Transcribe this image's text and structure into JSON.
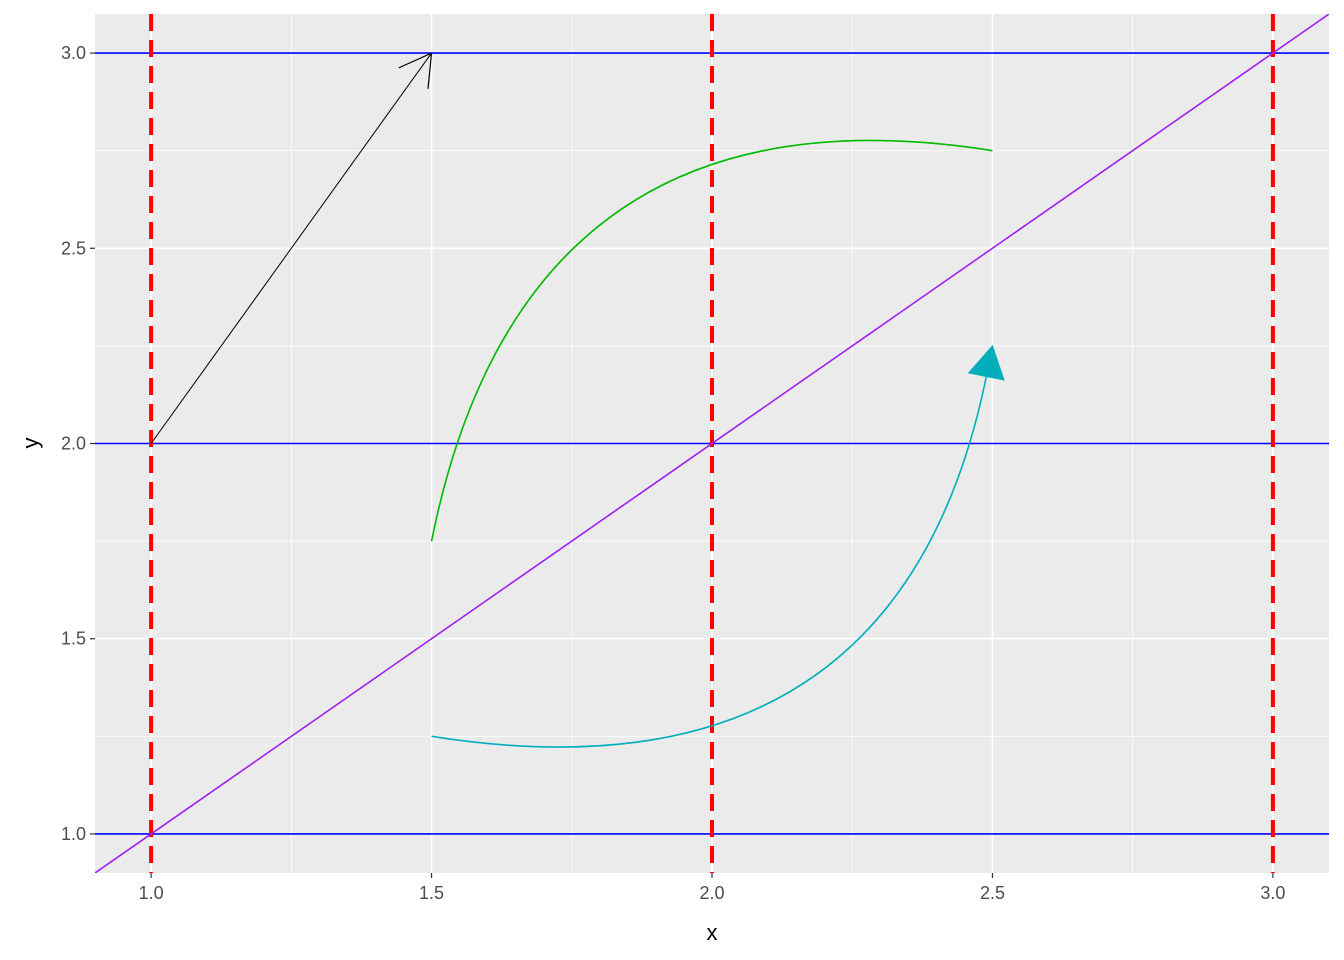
{
  "chart_data": {
    "type": "line",
    "xlabel": "x",
    "ylabel": "y",
    "xlim": [
      0.9,
      3.1
    ],
    "ylim": [
      0.9,
      3.1
    ],
    "x_ticks": [
      1.0,
      1.5,
      2.0,
      2.5,
      3.0
    ],
    "x_tick_labels": [
      "1.0",
      "1.5",
      "2.0",
      "2.5",
      "3.0"
    ],
    "y_ticks": [
      1.0,
      1.5,
      2.0,
      2.5,
      3.0
    ],
    "y_tick_labels": [
      "1.0",
      "1.5",
      "2.0",
      "2.5",
      "3.0"
    ],
    "grid": true,
    "background": "#EBEBEB",
    "hlines": {
      "values": [
        1,
        2,
        3
      ],
      "color": "#0000FF"
    },
    "vlines": {
      "values": [
        1,
        2,
        3
      ],
      "color": "#FF0000",
      "linetype": "dashed"
    },
    "abline": {
      "slope": 1,
      "intercept": 0,
      "color": "#A020F0"
    },
    "segment": {
      "x": 1,
      "y": 2,
      "xend": 1.5,
      "yend": 3,
      "color": "#000000",
      "arrow": "open"
    },
    "curves": [
      {
        "x": 1.5,
        "y": 1.75,
        "xend": 2.5,
        "yend": 2.75,
        "curvature": -0.5,
        "color": "#00BA00",
        "arrow": "none"
      },
      {
        "x": 1.5,
        "y": 1.25,
        "xend": 2.5,
        "yend": 2.25,
        "curvature": 0.5,
        "color": "#00AFBB",
        "arrow": "closed"
      }
    ]
  }
}
